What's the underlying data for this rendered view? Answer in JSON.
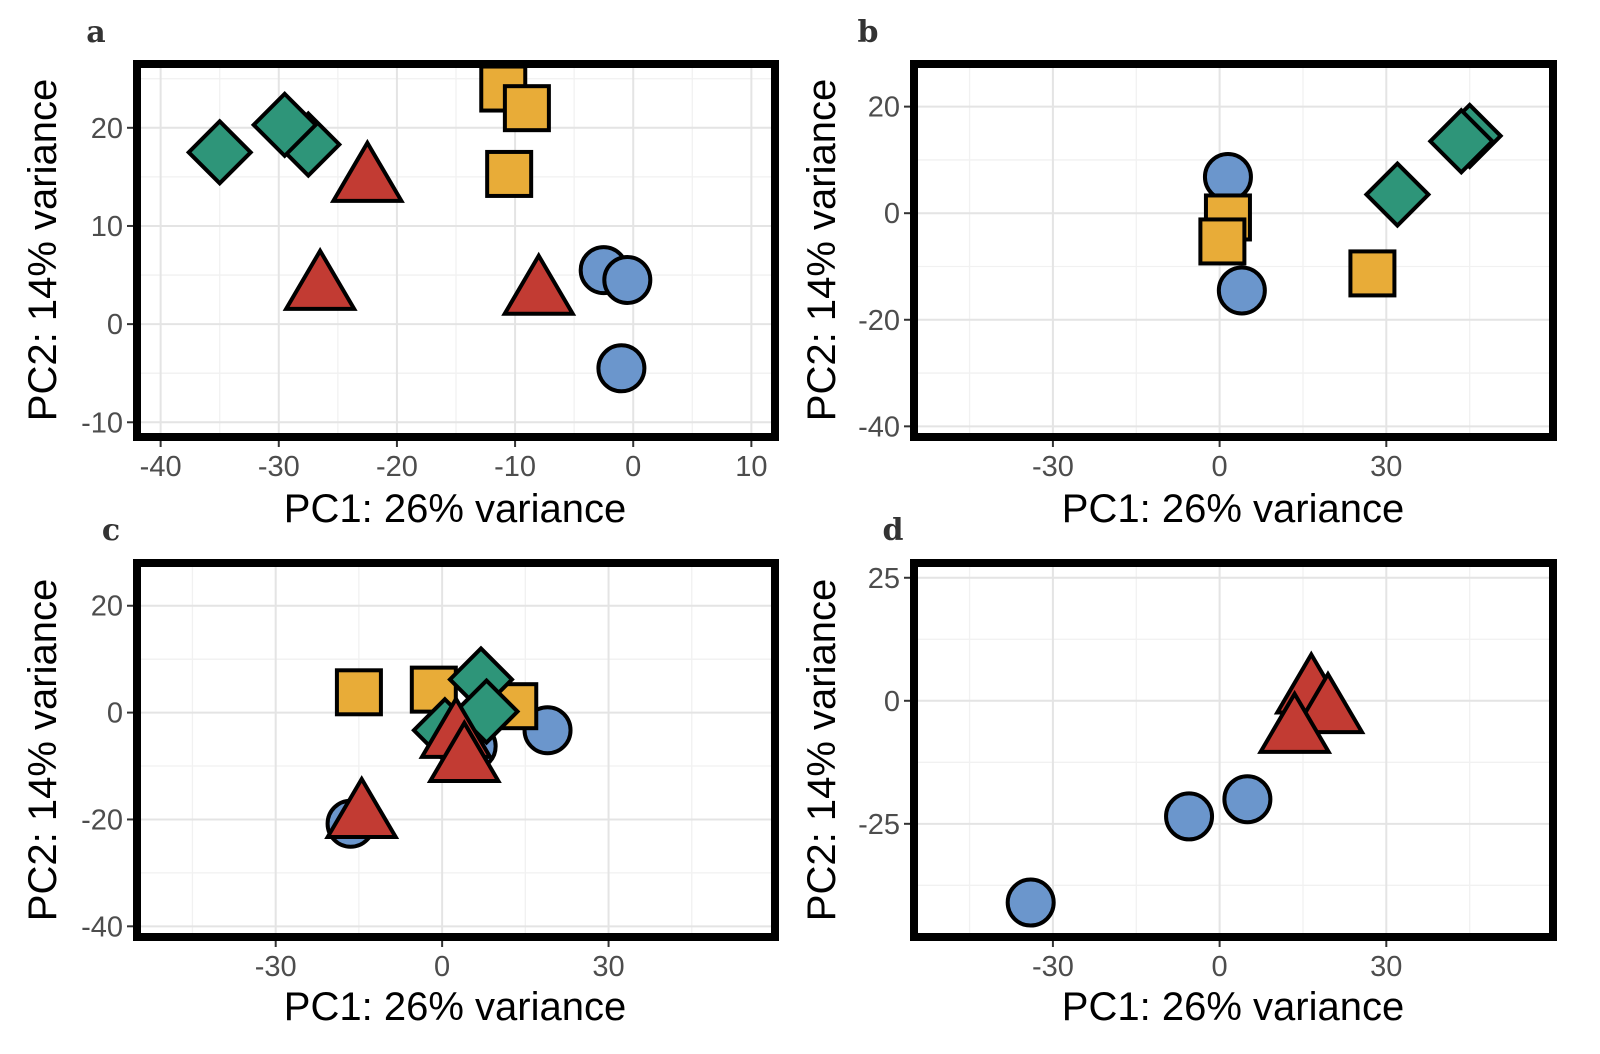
{
  "colors": {
    "circle": "#6b96cc",
    "square": "#e8ac38",
    "diamond": "#2e9579",
    "triangle": "#c23b33"
  },
  "chart_data": [
    {
      "type": "scatter",
      "panel_label": "a",
      "xlabel": "PC1: 26% variance",
      "ylabel": "PC2: 14% variance",
      "xlim": [
        -42,
        12
      ],
      "ylim": [
        -11.5,
        26.5
      ],
      "xticks": [
        -40,
        -30,
        -20,
        -10,
        0,
        10
      ],
      "yticks": [
        -10,
        0,
        10,
        20
      ],
      "grid": true,
      "series": [
        {
          "shape": "circle",
          "points": [
            [
              -2.5,
              5.5
            ],
            [
              -0.5,
              4.5
            ],
            [
              -1,
              -4.5
            ]
          ]
        },
        {
          "shape": "square",
          "points": [
            [
              -11,
              24
            ],
            [
              -9,
              22
            ],
            [
              -10.5,
              15.3
            ]
          ]
        },
        {
          "shape": "diamond",
          "points": [
            [
              -35,
              17.5
            ],
            [
              -27.5,
              18.3
            ],
            [
              -29.5,
              20.3
            ]
          ]
        },
        {
          "shape": "triangle",
          "points": [
            [
              -22.5,
              15
            ],
            [
              -26.5,
              4
            ],
            [
              -8,
              3.5
            ]
          ]
        }
      ]
    },
    {
      "type": "scatter",
      "panel_label": "b",
      "xlabel": "PC1: 26% variance",
      "ylabel": "PC2: 14% variance",
      "xlim": [
        -55,
        60
      ],
      "ylim": [
        -42,
        28
      ],
      "xticks": [
        -30,
        0,
        30
      ],
      "yticks": [
        -40,
        -20,
        0,
        20
      ],
      "grid": true,
      "series": [
        {
          "shape": "circle",
          "points": [
            [
              1.5,
              6.8
            ],
            [
              4,
              -14.5
            ]
          ]
        },
        {
          "shape": "square",
          "points": [
            [
              1.5,
              -0.8
            ],
            [
              0.5,
              -5.3
            ],
            [
              27.5,
              -11.3
            ]
          ]
        },
        {
          "shape": "diamond",
          "points": [
            [
              45,
              14.5
            ],
            [
              43.5,
              13.5
            ],
            [
              32,
              3.5
            ]
          ]
        }
      ]
    },
    {
      "type": "scatter",
      "panel_label": "c",
      "xlabel": "PC1: 26% variance",
      "ylabel": "PC2: 14% variance",
      "xlim": [
        -55,
        60
      ],
      "ylim": [
        -42,
        28
      ],
      "xticks": [
        -30,
        0,
        30
      ],
      "yticks": [
        -40,
        -20,
        0,
        20
      ],
      "grid": true,
      "series": [
        {
          "shape": "circle",
          "points": [
            [
              5.5,
              -6.3
            ],
            [
              19,
              -3.3
            ],
            [
              -16.5,
              -20.8
            ]
          ]
        },
        {
          "shape": "square",
          "points": [
            [
              -15,
              3.8
            ],
            [
              -1.5,
              4.3
            ],
            [
              13,
              1.2
            ]
          ]
        },
        {
          "shape": "diamond",
          "points": [
            [
              0.5,
              -3.3
            ],
            [
              7,
              6.2
            ],
            [
              8,
              0.2
            ]
          ]
        },
        {
          "shape": "triangle",
          "points": [
            [
              2.5,
              -3.8
            ],
            [
              4,
              -8.3
            ],
            [
              -14.5,
              -18.8
            ]
          ]
        }
      ]
    },
    {
      "type": "scatter",
      "panel_label": "d",
      "xlabel": "PC1: 26% variance",
      "ylabel": "PC2: 14% variance",
      "xlim": [
        -55,
        60
      ],
      "ylim": [
        -48,
        28
      ],
      "xticks": [
        -30,
        0,
        30
      ],
      "yticks": [
        -25,
        0,
        25
      ],
      "grid": true,
      "series": [
        {
          "shape": "circle",
          "points": [
            [
              -34,
              -41
            ],
            [
              -5.5,
              -23.5
            ],
            [
              5,
              -20
            ]
          ]
        },
        {
          "shape": "triangle",
          "points": [
            [
              16.5,
              2.5
            ],
            [
              19.5,
              -1.5
            ],
            [
              13.5,
              -5.5
            ]
          ]
        }
      ]
    }
  ]
}
